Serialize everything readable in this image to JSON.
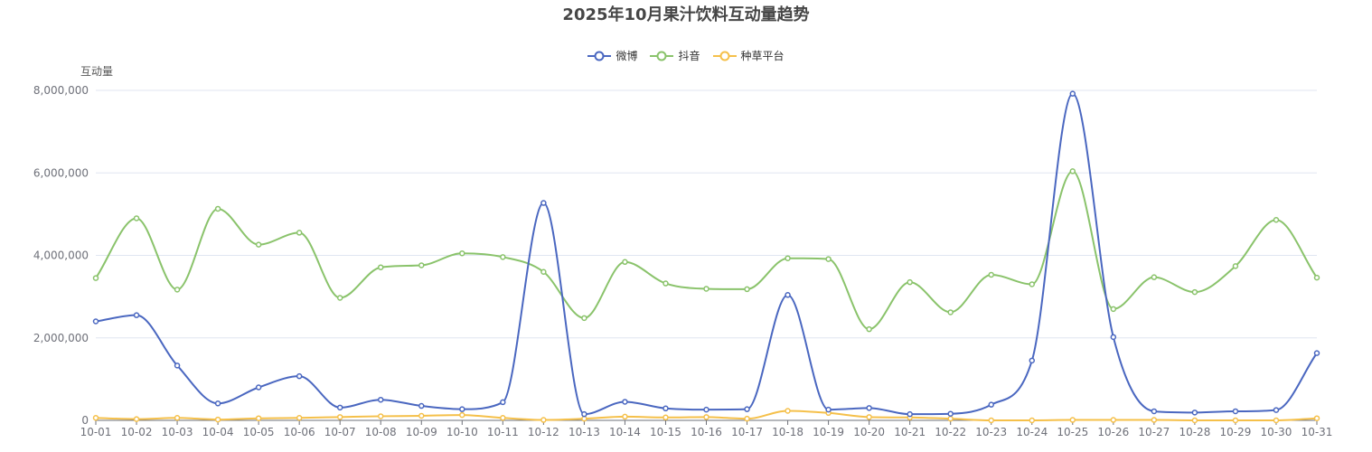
{
  "chart_data": {
    "type": "line",
    "title": "2025年10月果汁饮料互动量趋势",
    "ylabel": "互动量",
    "xlabel": "",
    "ylim": [
      0,
      8000000
    ],
    "y_ticks": [
      0,
      2000000,
      4000000,
      6000000,
      8000000
    ],
    "y_tick_labels": [
      "0",
      "2,000,000",
      "4,000,000",
      "6,000,000",
      "8,000,000"
    ],
    "grid": true,
    "legend_position": "top-center",
    "smooth": true,
    "categories": [
      "10-01",
      "10-02",
      "10-03",
      "10-04",
      "10-05",
      "10-06",
      "10-07",
      "10-08",
      "10-09",
      "10-10",
      "10-11",
      "10-12",
      "10-13",
      "10-14",
      "10-15",
      "10-16",
      "10-17",
      "10-18",
      "10-19",
      "10-20",
      "10-21",
      "10-22",
      "10-23",
      "10-24",
      "10-25",
      "10-26",
      "10-27",
      "10-28",
      "10-29",
      "10-30",
      "10-31"
    ],
    "series": [
      {
        "name": "微博",
        "color": "#4a67c0",
        "values": [
          2400000,
          2550000,
          1330000,
          410000,
          800000,
          1070000,
          310000,
          500000,
          350000,
          270000,
          440000,
          5270000,
          150000,
          450000,
          290000,
          260000,
          270000,
          3040000,
          260000,
          300000,
          150000,
          160000,
          380000,
          1450000,
          7920000,
          2020000,
          220000,
          190000,
          220000,
          250000,
          1630000
        ]
      },
      {
        "name": "抖音",
        "color": "#8ac36b",
        "values": [
          3450000,
          4900000,
          3170000,
          5130000,
          4260000,
          4550000,
          2970000,
          3710000,
          3760000,
          4050000,
          3960000,
          3600000,
          2480000,
          3840000,
          3320000,
          3190000,
          3180000,
          3930000,
          3910000,
          2210000,
          3350000,
          2620000,
          3530000,
          3300000,
          6040000,
          2700000,
          3470000,
          3110000,
          3740000,
          4860000,
          3460000
        ]
      },
      {
        "name": "种草平台",
        "color": "#f5c04a",
        "values": [
          60000,
          30000,
          60000,
          20000,
          50000,
          60000,
          80000,
          100000,
          110000,
          130000,
          60000,
          10000,
          40000,
          90000,
          70000,
          80000,
          40000,
          230000,
          180000,
          80000,
          70000,
          40000,
          0,
          0,
          10000,
          10000,
          10000,
          0,
          0,
          0,
          50000
        ]
      }
    ]
  }
}
